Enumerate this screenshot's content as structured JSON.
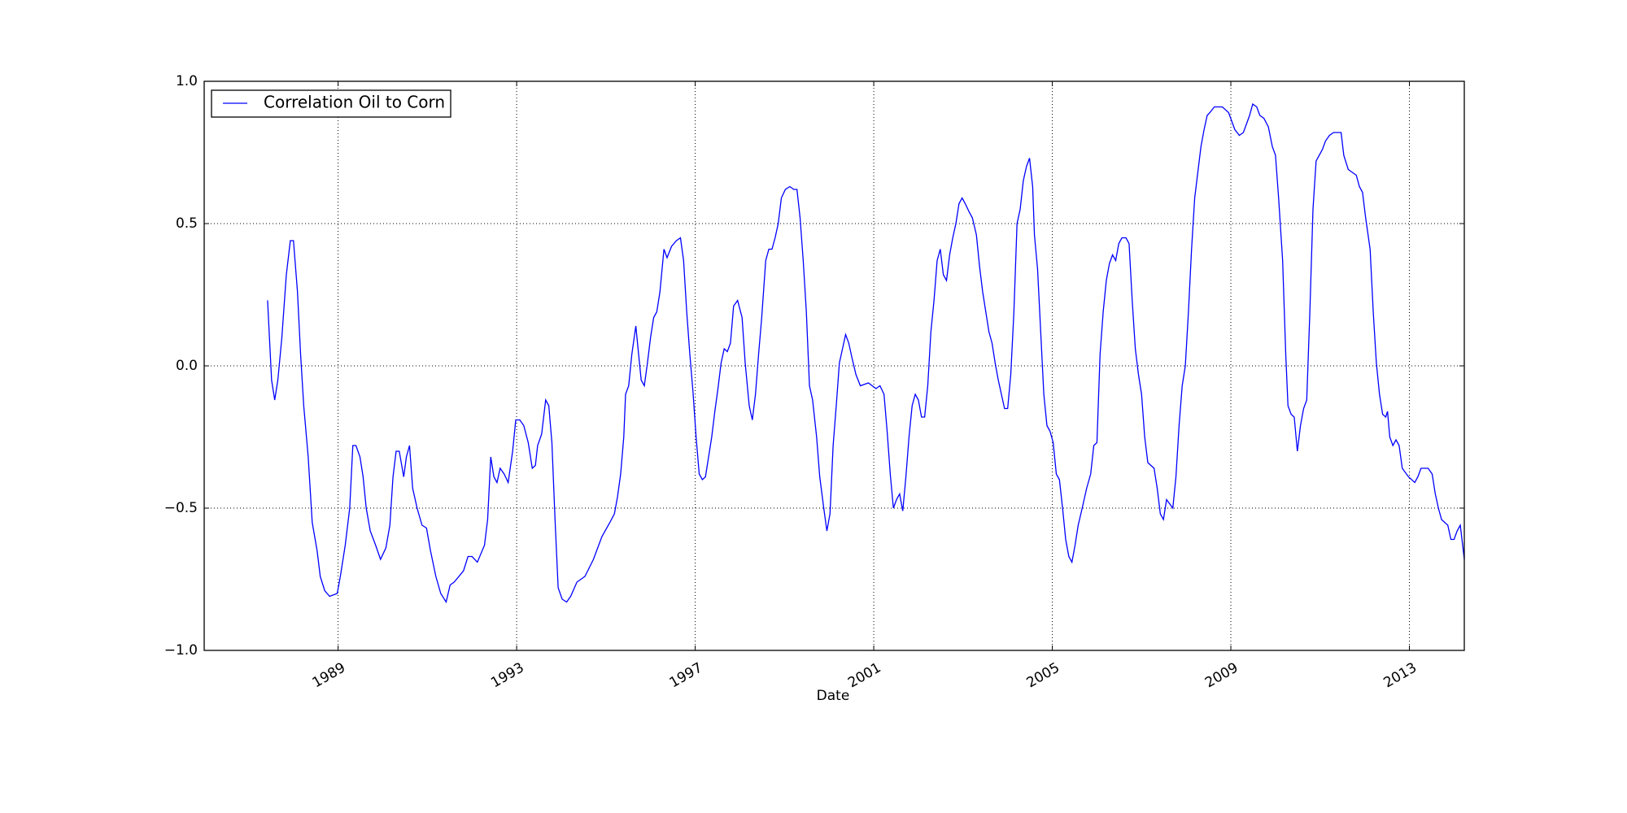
{
  "chart_data": {
    "type": "line",
    "xlabel": "Date",
    "x": [
      1987.42,
      1987.51,
      1987.58,
      1987.65,
      1987.74,
      1987.84,
      1987.93,
      1988.0,
      1988.09,
      1988.16,
      1988.23,
      1988.33,
      1988.42,
      1988.53,
      1988.6,
      1988.7,
      1988.81,
      1988.98,
      1989.05,
      1989.16,
      1989.26,
      1989.33,
      1989.4,
      1989.49,
      1989.56,
      1989.63,
      1989.72,
      1989.84,
      1989.95,
      1990.07,
      1990.16,
      1990.23,
      1990.3,
      1990.37,
      1990.47,
      1990.53,
      1990.6,
      1990.67,
      1990.77,
      1990.88,
      1990.98,
      1991.07,
      1991.19,
      1991.3,
      1991.42,
      1991.51,
      1991.6,
      1991.81,
      1991.91,
      1992.0,
      1992.12,
      1992.28,
      1992.35,
      1992.42,
      1992.49,
      1992.56,
      1992.63,
      1992.72,
      1992.81,
      1992.91,
      1992.98,
      1993.07,
      1993.16,
      1993.26,
      1993.35,
      1993.42,
      1993.47,
      1993.56,
      1993.65,
      1993.72,
      1993.79,
      1993.86,
      1993.93,
      1994.02,
      1994.12,
      1994.21,
      1994.35,
      1994.53,
      1994.72,
      1994.91,
      1995.09,
      1995.19,
      1995.26,
      1995.33,
      1995.4,
      1995.44,
      1995.51,
      1995.58,
      1995.67,
      1995.72,
      1995.79,
      1995.86,
      1995.93,
      1996.0,
      1996.07,
      1996.14,
      1996.21,
      1996.3,
      1996.37,
      1996.47,
      1996.58,
      1996.67,
      1996.74,
      1996.81,
      1996.88,
      1996.95,
      1997.02,
      1997.09,
      1997.16,
      1997.23,
      1997.3,
      1997.37,
      1997.44,
      1997.51,
      1997.58,
      1997.65,
      1997.72,
      1997.79,
      1997.86,
      1997.95,
      1998.05,
      1998.12,
      1998.21,
      1998.28,
      1998.35,
      1998.42,
      1998.49,
      1998.58,
      1998.65,
      1998.72,
      1998.79,
      1998.86,
      1998.93,
      1999.02,
      1999.12,
      1999.21,
      1999.28,
      1999.35,
      1999.42,
      1999.49,
      1999.56,
      1999.63,
      1999.72,
      1999.79,
      1999.88,
      1999.95,
      2000.02,
      2000.09,
      2000.16,
      2000.23,
      2000.3,
      2000.37,
      2000.44,
      2000.51,
      2000.6,
      2000.7,
      2000.88,
      2001.05,
      2001.14,
      2001.23,
      2001.3,
      2001.37,
      2001.44,
      2001.51,
      2001.58,
      2001.65,
      2001.72,
      2001.79,
      2001.86,
      2001.93,
      2002.0,
      2002.07,
      2002.14,
      2002.21,
      2002.28,
      2002.35,
      2002.42,
      2002.49,
      2002.56,
      2002.63,
      2002.7,
      2002.77,
      2002.84,
      2002.91,
      2002.98,
      2003.05,
      2003.14,
      2003.21,
      2003.3,
      2003.37,
      2003.44,
      2003.51,
      2003.58,
      2003.65,
      2003.72,
      2003.79,
      2003.86,
      2003.93,
      2004.0,
      2004.07,
      2004.14,
      2004.21,
      2004.28,
      2004.35,
      2004.42,
      2004.49,
      2004.56,
      2004.6,
      2004.67,
      2004.74,
      2004.81,
      2004.88,
      2004.95,
      2005.02,
      2005.09,
      2005.16,
      2005.23,
      2005.3,
      2005.37,
      2005.44,
      2005.51,
      2005.58,
      2005.67,
      2005.77,
      2005.86,
      2005.93,
      2006.0,
      2006.07,
      2006.14,
      2006.21,
      2006.28,
      2006.35,
      2006.42,
      2006.49,
      2006.56,
      2006.65,
      2006.72,
      2006.79,
      2006.86,
      2006.93,
      2007.0,
      2007.07,
      2007.14,
      2007.28,
      2007.35,
      2007.42,
      2007.49,
      2007.56,
      2007.7,
      2007.77,
      2007.84,
      2007.91,
      2007.98,
      2008.05,
      2008.12,
      2008.19,
      2008.26,
      2008.33,
      2008.4,
      2008.47,
      2008.53,
      2008.63,
      2008.72,
      2008.81,
      2008.95,
      2009.02,
      2009.09,
      2009.19,
      2009.28,
      2009.35,
      2009.42,
      2009.49,
      2009.58,
      2009.65,
      2009.74,
      2009.84,
      2009.93,
      2010.0,
      2010.07,
      2010.16,
      2010.23,
      2010.28,
      2010.35,
      2010.42,
      2010.49,
      2010.56,
      2010.63,
      2010.7,
      2010.77,
      2010.84,
      2010.91,
      2011.05,
      2011.12,
      2011.21,
      2011.3,
      2011.47,
      2011.53,
      2011.63,
      2011.81,
      2011.88,
      2011.95,
      2012.02,
      2012.12,
      2012.19,
      2012.26,
      2012.33,
      2012.4,
      2012.47,
      2012.51,
      2012.56,
      2012.63,
      2012.7,
      2012.77,
      2012.84,
      2012.98,
      2013.12,
      2013.19,
      2013.26,
      2013.42,
      2013.51,
      2013.58,
      2013.65,
      2013.72,
      2013.86,
      2013.93,
      2014.0,
      2014.07,
      2014.14,
      2014.23
    ],
    "series": [
      {
        "name": "Correlation Oil to Corn",
        "color": "#0000ff",
        "values": [
          0.23,
          -0.05,
          -0.12,
          -0.05,
          0.1,
          0.32,
          0.44,
          0.44,
          0.26,
          0.04,
          -0.14,
          -0.32,
          -0.55,
          -0.65,
          -0.74,
          -0.79,
          -0.81,
          -0.8,
          -0.74,
          -0.63,
          -0.5,
          -0.28,
          -0.28,
          -0.32,
          -0.39,
          -0.5,
          -0.58,
          -0.63,
          -0.68,
          -0.64,
          -0.56,
          -0.39,
          -0.3,
          -0.3,
          -0.39,
          -0.32,
          -0.28,
          -0.43,
          -0.5,
          -0.56,
          -0.57,
          -0.65,
          -0.74,
          -0.8,
          -0.83,
          -0.77,
          -0.76,
          -0.72,
          -0.67,
          -0.67,
          -0.69,
          -0.63,
          -0.54,
          -0.32,
          -0.39,
          -0.41,
          -0.36,
          -0.38,
          -0.41,
          -0.3,
          -0.19,
          -0.19,
          -0.21,
          -0.27,
          -0.36,
          -0.35,
          -0.28,
          -0.24,
          -0.12,
          -0.14,
          -0.27,
          -0.54,
          -0.78,
          -0.82,
          -0.83,
          -0.81,
          -0.76,
          -0.74,
          -0.68,
          -0.6,
          -0.55,
          -0.52,
          -0.46,
          -0.38,
          -0.25,
          -0.1,
          -0.07,
          0.04,
          0.14,
          0.06,
          -0.05,
          -0.07,
          0.01,
          0.1,
          0.17,
          0.19,
          0.26,
          0.41,
          0.38,
          0.42,
          0.44,
          0.45,
          0.37,
          0.19,
          0.04,
          -0.09,
          -0.25,
          -0.38,
          -0.4,
          -0.39,
          -0.32,
          -0.25,
          -0.16,
          -0.08,
          0.01,
          0.06,
          0.05,
          0.08,
          0.21,
          0.23,
          0.17,
          0.01,
          -0.14,
          -0.19,
          -0.1,
          0.04,
          0.17,
          0.37,
          0.41,
          0.41,
          0.45,
          0.5,
          0.59,
          0.62,
          0.63,
          0.62,
          0.62,
          0.52,
          0.37,
          0.19,
          -0.07,
          -0.12,
          -0.25,
          -0.39,
          -0.5,
          -0.58,
          -0.52,
          -0.28,
          -0.14,
          0.01,
          0.06,
          0.11,
          0.08,
          0.03,
          -0.03,
          -0.07,
          -0.06,
          -0.08,
          -0.07,
          -0.1,
          -0.23,
          -0.38,
          -0.5,
          -0.47,
          -0.45,
          -0.51,
          -0.39,
          -0.25,
          -0.14,
          -0.1,
          -0.12,
          -0.18,
          -0.18,
          -0.07,
          0.12,
          0.23,
          0.37,
          0.41,
          0.32,
          0.3,
          0.39,
          0.45,
          0.5,
          0.57,
          0.59,
          0.57,
          0.54,
          0.52,
          0.46,
          0.35,
          0.26,
          0.19,
          0.12,
          0.08,
          0.01,
          -0.05,
          -0.1,
          -0.15,
          -0.15,
          -0.03,
          0.19,
          0.5,
          0.55,
          0.65,
          0.7,
          0.73,
          0.63,
          0.46,
          0.34,
          0.12,
          -0.1,
          -0.21,
          -0.23,
          -0.27,
          -0.38,
          -0.4,
          -0.5,
          -0.61,
          -0.67,
          -0.69,
          -0.63,
          -0.56,
          -0.5,
          -0.43,
          -0.38,
          -0.28,
          -0.27,
          0.04,
          0.19,
          0.3,
          0.36,
          0.39,
          0.37,
          0.43,
          0.45,
          0.45,
          0.43,
          0.23,
          0.06,
          -0.03,
          -0.1,
          -0.25,
          -0.34,
          -0.36,
          -0.43,
          -0.52,
          -0.54,
          -0.47,
          -0.5,
          -0.39,
          -0.21,
          -0.07,
          0.0,
          0.19,
          0.41,
          0.59,
          0.68,
          0.77,
          0.83,
          0.88,
          0.89,
          0.91,
          0.91,
          0.91,
          0.89,
          0.86,
          0.83,
          0.81,
          0.82,
          0.85,
          0.88,
          0.92,
          0.91,
          0.88,
          0.87,
          0.84,
          0.77,
          0.74,
          0.59,
          0.37,
          0.04,
          -0.14,
          -0.17,
          -0.18,
          -0.3,
          -0.21,
          -0.15,
          -0.12,
          0.19,
          0.55,
          0.72,
          0.76,
          0.79,
          0.81,
          0.82,
          0.82,
          0.74,
          0.69,
          0.67,
          0.63,
          0.61,
          0.52,
          0.41,
          0.19,
          0.01,
          -0.1,
          -0.17,
          -0.18,
          -0.16,
          -0.25,
          -0.28,
          -0.26,
          -0.28,
          -0.36,
          -0.39,
          -0.41,
          -0.39,
          -0.36,
          -0.36,
          -0.38,
          -0.45,
          -0.5,
          -0.54,
          -0.56,
          -0.61,
          -0.61,
          -0.58,
          -0.56,
          -0.68
        ]
      }
    ],
    "xlim": [
      1986.0,
      2014.23
    ],
    "xticks": [
      1989,
      1993,
      1997,
      2001,
      2005,
      2009,
      2013
    ],
    "ylim": [
      -1,
      1
    ],
    "yticks": [
      {
        "value": -1,
        "label": "−1.0"
      },
      {
        "value": -0.5,
        "label": "−0.5"
      },
      {
        "value": 0,
        "label": "0.0"
      },
      0.5,
      {
        "value": 1,
        "label": "1.0"
      }
    ],
    "grid": true,
    "legend": "upper left"
  }
}
